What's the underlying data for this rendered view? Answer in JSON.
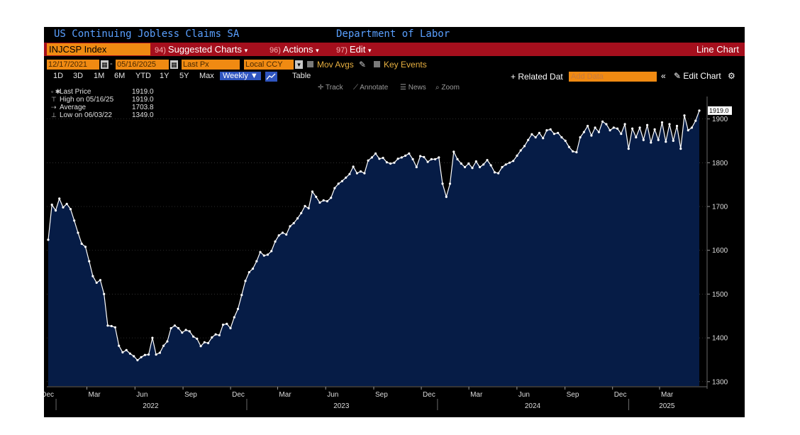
{
  "header": {
    "title": "US Continuing Jobless Claims SA",
    "source": "Department of Labor"
  },
  "menu": {
    "ticker": "INJCSP Index",
    "suggested": {
      "num": "94)",
      "label": "Suggested Charts"
    },
    "actions": {
      "num": "96)",
      "label": "Actions"
    },
    "edit": {
      "num": "97)",
      "label": "Edit"
    },
    "caret": "▾",
    "chart_type": "Line Chart"
  },
  "fields": {
    "start_date": "12/17/2021",
    "end_date": "05/16/2025",
    "date_sep": "-",
    "price_field": "Last Px",
    "currency": "Local CCY",
    "mov_avgs": "Mov Avgs",
    "key_events": "Key Events"
  },
  "periods": {
    "items": [
      "1D",
      "3D",
      "1M",
      "6M",
      "YTD",
      "1Y",
      "5Y",
      "Max"
    ],
    "frequency": "Weekly ▼",
    "table": "Table",
    "related": "+ Related Dat",
    "add_data": "Add Data",
    "collapse": "«",
    "edit_chart": "✎ Edit Chart",
    "gear": "⚙"
  },
  "tools": {
    "track": "Track",
    "annotate": "Annotate",
    "news": "News",
    "zoom": "Zoom"
  },
  "legend": {
    "last_price": {
      "label": "Last Price",
      "value": "1919.0"
    },
    "high": {
      "label": "High on 05/16/25",
      "value": "1919.0"
    },
    "average": {
      "label": "Average",
      "value": "1703.8"
    },
    "low": {
      "label": "Low on 06/03/22",
      "value": "1349.0"
    }
  },
  "chart_data": {
    "type": "area",
    "x_start": "2021-12-17",
    "x_end": "2025-05-16",
    "frequency": "weekly",
    "ylim": [
      1290,
      1935
    ],
    "yticks": [
      1300,
      1400,
      1500,
      1600,
      1700,
      1800,
      1900
    ],
    "last_value_label": "1919.0",
    "x_month_labels": [
      {
        "label": "Dec",
        "date": "2021-12-01"
      },
      {
        "label": "Mar",
        "date": "2022-03-01"
      },
      {
        "label": "Jun",
        "date": "2022-06-01"
      },
      {
        "label": "Sep",
        "date": "2022-09-01"
      },
      {
        "label": "Dec",
        "date": "2022-12-01"
      },
      {
        "label": "Mar",
        "date": "2023-03-01"
      },
      {
        "label": "Jun",
        "date": "2023-06-01"
      },
      {
        "label": "Sep",
        "date": "2023-09-01"
      },
      {
        "label": "Dec",
        "date": "2023-12-01"
      },
      {
        "label": "Mar",
        "date": "2024-03-01"
      },
      {
        "label": "Jun",
        "date": "2024-06-01"
      },
      {
        "label": "Sep",
        "date": "2024-09-01"
      },
      {
        "label": "Dec",
        "date": "2024-12-01"
      },
      {
        "label": "Mar",
        "date": "2025-03-01"
      }
    ],
    "x_year_labels": [
      {
        "label": "2022",
        "date": "2022-07-01"
      },
      {
        "label": "2023",
        "date": "2023-07-01"
      },
      {
        "label": "2024",
        "date": "2024-07-01"
      },
      {
        "label": "2025",
        "date": "2025-03-15"
      }
    ],
    "year_dividers": [
      "2022-01-01",
      "2023-01-01",
      "2024-01-01",
      "2025-01-01"
    ],
    "series": [
      {
        "values": [
          1624,
          1704,
          1691,
          1718,
          1698,
          1706,
          1694,
          1668,
          1640,
          1615,
          1608,
          1575,
          1541,
          1526,
          1532,
          1500,
          1428,
          1427,
          1424,
          1382,
          1367,
          1372,
          1364,
          1358,
          1349,
          1356,
          1361,
          1362,
          1400,
          1362,
          1366,
          1382,
          1392,
          1422,
          1428,
          1422,
          1412,
          1418,
          1415,
          1403,
          1398,
          1381,
          1390,
          1388,
          1401,
          1408,
          1406,
          1430,
          1432,
          1422,
          1447,
          1466,
          1498,
          1530,
          1550,
          1558,
          1575,
          1596,
          1588,
          1590,
          1598,
          1620,
          1634,
          1640,
          1636,
          1655,
          1662,
          1673,
          1685,
          1701,
          1696,
          1734,
          1722,
          1709,
          1714,
          1712,
          1720,
          1742,
          1752,
          1758,
          1766,
          1774,
          1791,
          1776,
          1780,
          1776,
          1805,
          1812,
          1821,
          1809,
          1811,
          1801,
          1798,
          1800,
          1809,
          1812,
          1816,
          1821,
          1808,
          1790,
          1815,
          1813,
          1802,
          1808,
          1808,
          1812,
          1752,
          1722,
          1752,
          1825,
          1808,
          1798,
          1790,
          1798,
          1788,
          1803,
          1790,
          1796,
          1806,
          1794,
          1778,
          1776,
          1790,
          1796,
          1800,
          1804,
          1816,
          1828,
          1838,
          1852,
          1865,
          1858,
          1868,
          1856,
          1874,
          1876,
          1866,
          1868,
          1858,
          1850,
          1836,
          1826,
          1824,
          1858,
          1870,
          1884,
          1862,
          1880,
          1870,
          1894,
          1888,
          1874,
          1880,
          1878,
          1866,
          1888,
          1832,
          1878,
          1858,
          1880,
          1852,
          1886,
          1846,
          1876,
          1852,
          1892,
          1848,
          1888,
          1850,
          1884,
          1832,
          1908,
          1874,
          1880,
          1896,
          1919
        ]
      }
    ]
  }
}
